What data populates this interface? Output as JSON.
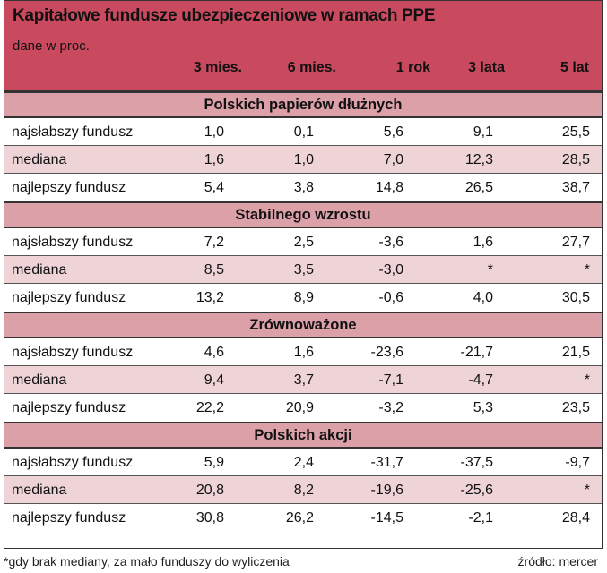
{
  "title": "Kapitałowe fundusze ubezpieczeniowe w ramach PPE",
  "subtitle": "dane w proc.",
  "columns": [
    "3 mies.",
    "6 mies.",
    "1 rok",
    "3 lata",
    "5 lat"
  ],
  "sections": [
    {
      "name": "Polskich papierów dłużnych",
      "rows": [
        {
          "label": "najsłabszy fundusz",
          "values": [
            "1,0",
            "0,1",
            "5,6",
            "9,1",
            "25,5"
          ]
        },
        {
          "label": "mediana",
          "values": [
            "1,6",
            "1,0",
            "7,0",
            "12,3",
            "28,5"
          ]
        },
        {
          "label": "najlepszy fundusz",
          "values": [
            "5,4",
            "3,8",
            "14,8",
            "26,5",
            "38,7"
          ]
        }
      ]
    },
    {
      "name": "Stabilnego wzrostu",
      "rows": [
        {
          "label": "najsłabszy fundusz",
          "values": [
            "7,2",
            "2,5",
            "-3,6",
            "1,6",
            "27,7"
          ]
        },
        {
          "label": "mediana",
          "values": [
            "8,5",
            "3,5",
            "-3,0",
            "*",
            "*"
          ]
        },
        {
          "label": "najlepszy fundusz",
          "values": [
            "13,2",
            "8,9",
            "-0,6",
            "4,0",
            "30,5"
          ]
        }
      ]
    },
    {
      "name": "Zrównoważone",
      "rows": [
        {
          "label": "najsłabszy fundusz",
          "values": [
            "4,6",
            "1,6",
            "-23,6",
            "-21,7",
            "21,5"
          ]
        },
        {
          "label": "mediana",
          "values": [
            "9,4",
            "3,7",
            "-7,1",
            "-4,7",
            "*"
          ]
        },
        {
          "label": "najlepszy fundusz",
          "values": [
            "22,2",
            "20,9",
            "-3,2",
            "5,3",
            "23,5"
          ]
        }
      ]
    },
    {
      "name": "Polskich akcji",
      "rows": [
        {
          "label": "najsłabszy fundusz",
          "values": [
            "5,9",
            "2,4",
            "-31,7",
            "-37,5",
            "-9,7"
          ]
        },
        {
          "label": "mediana",
          "values": [
            "20,8",
            "8,2",
            "-19,6",
            "-25,6",
            "*"
          ]
        },
        {
          "label": "najlepszy fundusz",
          "values": [
            "30,8",
            "26,2",
            "-14,5",
            "-2,1",
            "28,4"
          ]
        }
      ]
    }
  ],
  "footnote": "*gdy brak mediany, za mało funduszy do wyliczenia",
  "source": "źródło: mercer",
  "colors": {
    "header": "#c94a5f",
    "section": "#dca0a8",
    "shaded_row": "#eed3d7"
  }
}
